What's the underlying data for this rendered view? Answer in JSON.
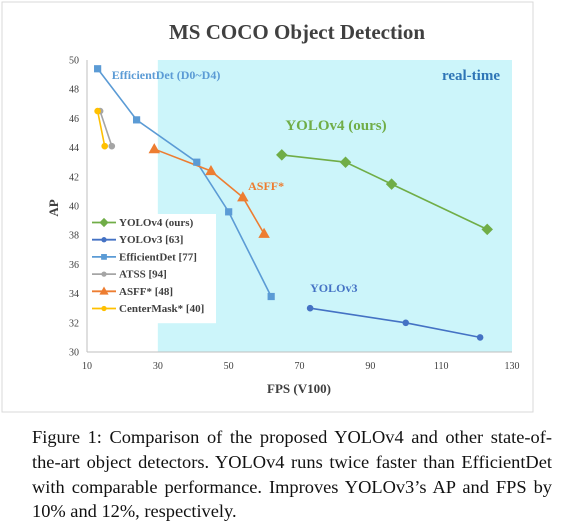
{
  "chart_data": {
    "type": "line",
    "title": "MS COCO Object Detection",
    "xlabel": "FPS (V100)",
    "ylabel": "AP",
    "xlim": [
      10,
      130
    ],
    "ylim": [
      30,
      50
    ],
    "x_ticks": [
      10,
      30,
      50,
      70,
      90,
      110,
      130
    ],
    "y_ticks": [
      30,
      32,
      34,
      36,
      38,
      40,
      42,
      44,
      46,
      48,
      50
    ],
    "grid": false,
    "legend_position": "left",
    "realtime_region": {
      "label": "real-time",
      "x_start": 30,
      "color": "#ccf5fa"
    },
    "series": [
      {
        "name": "YOLOv4 (ours)",
        "color": "#70ad47",
        "marker": "diamond",
        "label": "YOLOv4 (ours)",
        "label_at": [
          66,
          45.2
        ],
        "x": [
          65,
          83,
          96,
          123
        ],
        "y": [
          43.5,
          43.0,
          41.5,
          38.4
        ]
      },
      {
        "name": "YOLOv3 [63]",
        "color": "#4472c4",
        "marker": "circle",
        "label": "YOLOv3",
        "label_at": [
          73,
          34.1
        ],
        "x": [
          73,
          100,
          121
        ],
        "y": [
          33.0,
          32.0,
          31.0
        ]
      },
      {
        "name": "EfficientDet [77]",
        "color": "#5b9bd5",
        "marker": "square",
        "label": "EfficientDet (D0~D4)",
        "label_at": [
          17,
          48.7
        ],
        "x": [
          13,
          24,
          41,
          50,
          62
        ],
        "y": [
          49.4,
          45.9,
          43.0,
          39.6,
          33.8
        ]
      },
      {
        "name": "ATSS [94]",
        "color": "#a5a5a5",
        "marker": "circle",
        "x": [
          13.7,
          17
        ],
        "y": [
          46.5,
          44.1
        ]
      },
      {
        "name": "ASFF* [48]",
        "color": "#ed7d31",
        "marker": "triangle",
        "label": "ASFF*",
        "label_at": [
          55.5,
          41.1
        ],
        "x": [
          29,
          45,
          54,
          60
        ],
        "y": [
          43.9,
          42.4,
          40.6,
          38.1
        ]
      },
      {
        "name": "CenterMask* [40]",
        "color": "#ffc000",
        "marker": "circle",
        "x": [
          13,
          15
        ],
        "y": [
          46.5,
          44.1
        ]
      }
    ]
  },
  "caption": "Figure 1: Comparison of the proposed YOLOv4 and other state-of-the-art object detectors. YOLOv4 runs twice faster than EfficientDet with comparable performance. Improves YOLOv3’s AP and FPS by 10% and 12%, respectively."
}
